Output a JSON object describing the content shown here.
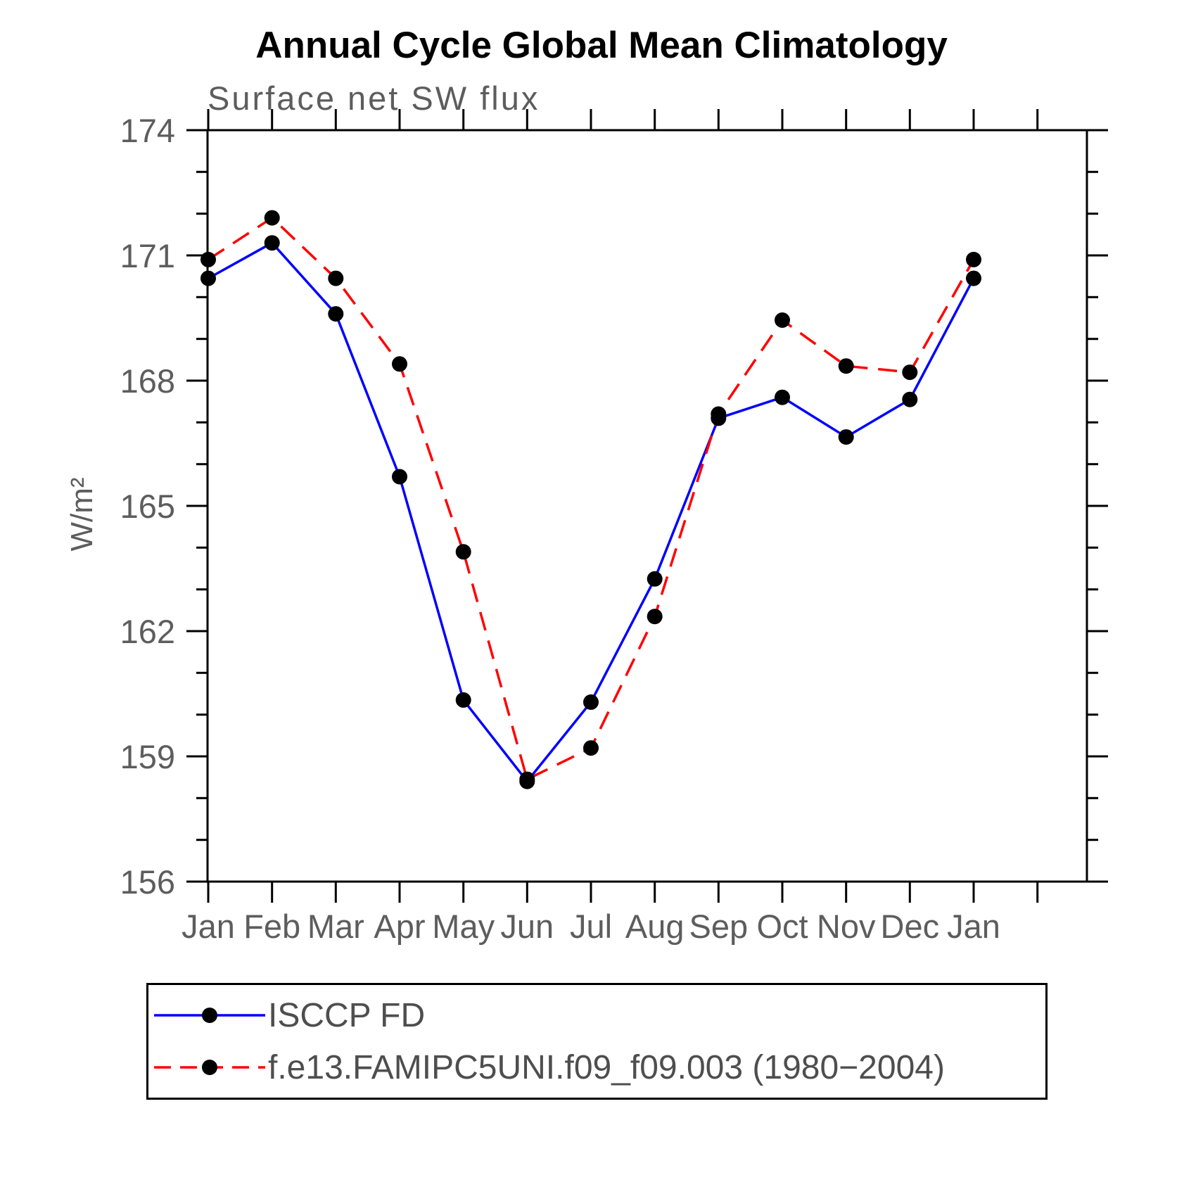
{
  "title": "Annual Cycle Global Mean Climatology",
  "subtitle": "Surface net SW flux",
  "chart_data": {
    "type": "line",
    "categories": [
      "Jan",
      "Feb",
      "Mar",
      "Apr",
      "May",
      "Jun",
      "Jul",
      "Aug",
      "Sep",
      "Oct",
      "Nov",
      "Dec",
      "Jan"
    ],
    "title": "Annual Cycle Global Mean Climatology",
    "subtitle": "Surface net SW flux",
    "xlabel": "",
    "ylabel": "W/m²",
    "ylim": [
      156,
      174
    ],
    "yticks": [
      156,
      159,
      162,
      165,
      168,
      171,
      174
    ],
    "grid": false,
    "legend_position": "bottom",
    "series": [
      {
        "name": "ISCCP FD",
        "color": "#0000ff",
        "style": "solid",
        "marker": "circle",
        "marker_color": "#000000",
        "values": [
          170.45,
          171.3,
          169.6,
          165.7,
          160.35,
          158.4,
          160.3,
          163.25,
          167.1,
          167.6,
          166.65,
          167.55,
          170.45
        ]
      },
      {
        "name": "f.e13.FAMIPC5UNI.f09_f09.003 (1980−2004)",
        "color": "#ff0000",
        "style": "dashed",
        "marker": "circle",
        "marker_color": "#000000",
        "values": [
          170.9,
          171.9,
          170.45,
          168.4,
          163.9,
          158.45,
          159.2,
          162.35,
          167.2,
          169.45,
          168.35,
          168.2,
          170.9
        ]
      }
    ]
  }
}
